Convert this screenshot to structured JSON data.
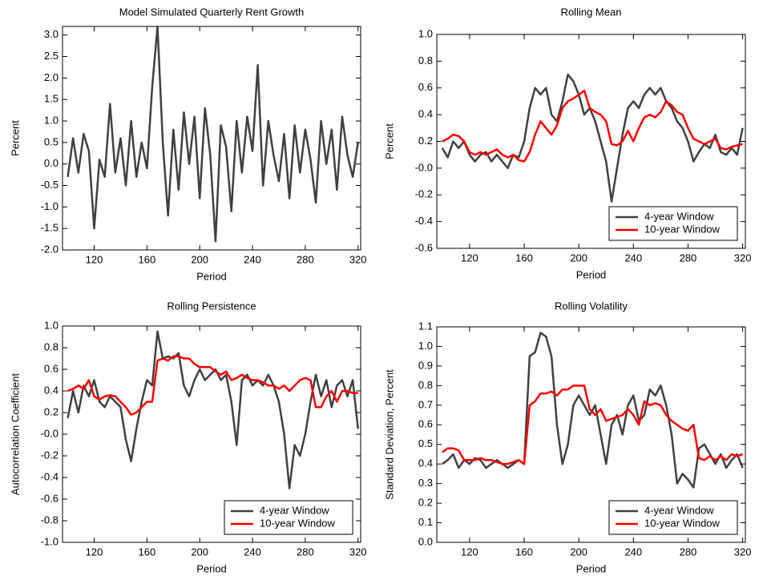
{
  "chart_data": [
    {
      "type": "line",
      "title": "Model Simulated Quarterly Rent Growth",
      "xlabel": "Period",
      "ylabel": "Percent",
      "x": [
        100,
        104,
        108,
        112,
        116,
        120,
        124,
        128,
        132,
        136,
        140,
        144,
        148,
        152,
        156,
        160,
        164,
        168,
        172,
        176,
        180,
        184,
        188,
        192,
        196,
        200,
        204,
        208,
        212,
        216,
        220,
        224,
        228,
        232,
        236,
        240,
        244,
        248,
        252,
        256,
        260,
        264,
        268,
        272,
        276,
        280,
        284,
        288,
        292,
        296,
        300,
        304,
        308,
        312,
        316,
        320
      ],
      "series": [
        {
          "color": "#404040",
          "values": [
            -0.3,
            0.6,
            -0.2,
            0.7,
            0.3,
            -1.5,
            0.1,
            -0.3,
            1.4,
            -0.2,
            0.6,
            -0.5,
            1.0,
            -0.3,
            0.5,
            -0.1,
            1.8,
            3.2,
            0.5,
            -1.2,
            0.8,
            -0.6,
            1.2,
            0.0,
            1.1,
            -0.8,
            1.3,
            0.2,
            -1.8,
            0.9,
            0.4,
            -1.1,
            1.0,
            -0.2,
            1.1,
            0.3,
            2.3,
            -0.5,
            1.0,
            0.2,
            -0.4,
            0.7,
            -0.8,
            0.9,
            -0.2,
            0.8,
            0.1,
            -0.9,
            1.0,
            0.0,
            0.8,
            -0.6,
            1.1,
            0.2,
            -0.3,
            0.5
          ]
        }
      ],
      "xlim": [
        96,
        322
      ],
      "ylim": [
        -2,
        3.2
      ],
      "xticks": [
        120,
        160,
        200,
        240,
        280,
        320
      ],
      "yticks": [
        {
          "value": -2,
          "label": "-2.0"
        },
        -1.5,
        {
          "value": -1,
          "label": "-1.0"
        },
        -0.5,
        {
          "value": 0,
          "label": "0.0"
        },
        0.5,
        {
          "value": 1,
          "label": "1.0"
        },
        1.5,
        {
          "value": 2,
          "label": "2.0"
        },
        2.5,
        {
          "value": 3,
          "label": "3.0"
        }
      ]
    },
    {
      "type": "line",
      "title": "Rolling Mean",
      "xlabel": "Period",
      "ylabel": "Percent",
      "x": [
        100,
        104,
        108,
        112,
        116,
        120,
        124,
        128,
        132,
        136,
        140,
        144,
        148,
        152,
        156,
        160,
        164,
        168,
        172,
        176,
        180,
        184,
        188,
        192,
        196,
        200,
        204,
        208,
        212,
        216,
        220,
        224,
        228,
        232,
        236,
        240,
        244,
        248,
        252,
        256,
        260,
        264,
        268,
        272,
        276,
        280,
        284,
        288,
        292,
        296,
        300,
        304,
        308,
        312,
        316,
        320
      ],
      "series": [
        {
          "name": "4-year Window",
          "color": "#404040",
          "values": [
            0.15,
            0.08,
            0.2,
            0.15,
            0.2,
            0.1,
            0.05,
            0.1,
            0.12,
            0.05,
            0.1,
            0.05,
            0.0,
            0.1,
            0.08,
            0.2,
            0.45,
            0.6,
            0.55,
            0.6,
            0.4,
            0.35,
            0.5,
            0.7,
            0.65,
            0.55,
            0.4,
            0.45,
            0.35,
            0.2,
            0.05,
            -0.25,
            0.0,
            0.25,
            0.45,
            0.5,
            0.45,
            0.55,
            0.6,
            0.55,
            0.6,
            0.5,
            0.45,
            0.35,
            0.3,
            0.2,
            0.05,
            0.12,
            0.18,
            0.15,
            0.25,
            0.12,
            0.1,
            0.15,
            0.1,
            0.3
          ]
        },
        {
          "name": "10-year Window",
          "color": "#ff0000",
          "values": [
            0.2,
            0.22,
            0.25,
            0.24,
            0.2,
            0.12,
            0.1,
            0.12,
            0.1,
            0.12,
            0.14,
            0.1,
            0.08,
            0.1,
            0.06,
            0.05,
            0.12,
            0.25,
            0.35,
            0.3,
            0.25,
            0.32,
            0.45,
            0.5,
            0.52,
            0.55,
            0.58,
            0.45,
            0.42,
            0.4,
            0.35,
            0.18,
            0.17,
            0.2,
            0.28,
            0.2,
            0.3,
            0.38,
            0.4,
            0.38,
            0.42,
            0.5,
            0.47,
            0.42,
            0.4,
            0.3,
            0.22,
            0.2,
            0.18,
            0.2,
            0.22,
            0.15,
            0.14,
            0.16,
            0.17,
            0.18
          ]
        }
      ],
      "xlim": [
        96,
        322
      ],
      "ylim": [
        -0.6,
        1.0
      ],
      "xticks": [
        120,
        160,
        200,
        240,
        280,
        320
      ],
      "yticks": [
        -0.6,
        -0.4,
        -0.2,
        {
          "value": 0,
          "label": "-0.0"
        },
        0.2,
        0.4,
        0.6,
        0.8,
        {
          "value": 1,
          "label": "1.0"
        }
      ],
      "legend": "lower right"
    },
    {
      "type": "line",
      "title": "Rolling Persistence",
      "xlabel": "Period",
      "ylabel": "Autocorrelation Coefficient",
      "x": [
        100,
        104,
        108,
        112,
        116,
        120,
        124,
        128,
        132,
        136,
        140,
        144,
        148,
        152,
        156,
        160,
        164,
        168,
        172,
        176,
        180,
        184,
        188,
        192,
        196,
        200,
        204,
        208,
        212,
        216,
        220,
        224,
        228,
        232,
        236,
        240,
        244,
        248,
        252,
        256,
        260,
        264,
        268,
        272,
        276,
        280,
        284,
        288,
        292,
        296,
        300,
        304,
        308,
        312,
        316,
        320
      ],
      "series": [
        {
          "name": "4-year Window",
          "color": "#404040",
          "values": [
            0.15,
            0.4,
            0.2,
            0.45,
            0.35,
            0.5,
            0.3,
            0.25,
            0.35,
            0.3,
            0.25,
            -0.05,
            -0.25,
            0.05,
            0.3,
            0.5,
            0.45,
            0.95,
            0.7,
            0.72,
            0.7,
            0.75,
            0.45,
            0.35,
            0.5,
            0.6,
            0.5,
            0.55,
            0.6,
            0.5,
            0.55,
            0.3,
            -0.1,
            0.5,
            0.55,
            0.45,
            0.5,
            0.45,
            0.55,
            0.45,
            0.3,
            0.0,
            -0.5,
            -0.1,
            -0.2,
            0.0,
            0.3,
            0.55,
            0.35,
            0.5,
            0.25,
            0.45,
            0.5,
            0.35,
            0.5,
            0.05
          ]
        },
        {
          "name": "10-year Window",
          "color": "#ff0000",
          "values": [
            0.4,
            0.42,
            0.45,
            0.42,
            0.5,
            0.35,
            0.32,
            0.35,
            0.36,
            0.35,
            0.3,
            0.25,
            0.18,
            0.2,
            0.25,
            0.3,
            0.3,
            0.68,
            0.7,
            0.68,
            0.72,
            0.72,
            0.7,
            0.7,
            0.65,
            0.62,
            0.62,
            0.62,
            0.58,
            0.55,
            0.58,
            0.5,
            0.52,
            0.55,
            0.52,
            0.5,
            0.5,
            0.48,
            0.45,
            0.45,
            0.42,
            0.45,
            0.4,
            0.45,
            0.5,
            0.52,
            0.5,
            0.25,
            0.25,
            0.35,
            0.4,
            0.3,
            0.4,
            0.4,
            0.38,
            0.38
          ]
        }
      ],
      "xlim": [
        96,
        322
      ],
      "ylim": [
        -1.0,
        1.0
      ],
      "xticks": [
        120,
        160,
        200,
        240,
        280,
        320
      ],
      "yticks": [
        {
          "value": -1,
          "label": "-1.0"
        },
        -0.8,
        -0.6,
        -0.4,
        -0.2,
        {
          "value": 0,
          "label": "-0.0"
        },
        0.2,
        0.4,
        0.6,
        0.8,
        {
          "value": 1,
          "label": "1.0"
        }
      ],
      "legend": "lower right"
    },
    {
      "type": "line",
      "title": "Rolling Volatility",
      "xlabel": "Period",
      "ylabel": "Standard Deviation, Percent",
      "x": [
        100,
        104,
        108,
        112,
        116,
        120,
        124,
        128,
        132,
        136,
        140,
        144,
        148,
        152,
        156,
        160,
        164,
        168,
        172,
        176,
        180,
        184,
        188,
        192,
        196,
        200,
        204,
        208,
        212,
        216,
        220,
        224,
        228,
        232,
        236,
        240,
        244,
        248,
        252,
        256,
        260,
        264,
        268,
        272,
        276,
        280,
        284,
        288,
        292,
        296,
        300,
        304,
        308,
        312,
        316,
        320
      ],
      "series": [
        {
          "name": "4-year Window",
          "color": "#404040",
          "values": [
            0.4,
            0.42,
            0.45,
            0.38,
            0.42,
            0.4,
            0.43,
            0.42,
            0.38,
            0.4,
            0.42,
            0.4,
            0.38,
            0.4,
            0.42,
            0.4,
            0.95,
            0.97,
            1.07,
            1.05,
            0.95,
            0.6,
            0.4,
            0.5,
            0.7,
            0.75,
            0.7,
            0.65,
            0.7,
            0.55,
            0.4,
            0.6,
            0.65,
            0.55,
            0.7,
            0.75,
            0.62,
            0.65,
            0.78,
            0.75,
            0.8,
            0.7,
            0.55,
            0.3,
            0.35,
            0.32,
            0.28,
            0.48,
            0.5,
            0.45,
            0.4,
            0.45,
            0.38,
            0.42,
            0.45,
            0.38
          ]
        },
        {
          "name": "10-year Window",
          "color": "#ff0000",
          "values": [
            0.46,
            0.48,
            0.48,
            0.47,
            0.42,
            0.42,
            0.42,
            0.43,
            0.42,
            0.42,
            0.41,
            0.4,
            0.4,
            0.41,
            0.42,
            0.4,
            0.7,
            0.72,
            0.76,
            0.76,
            0.77,
            0.75,
            0.78,
            0.78,
            0.8,
            0.8,
            0.8,
            0.68,
            0.65,
            0.68,
            0.62,
            0.63,
            0.64,
            0.65,
            0.68,
            0.65,
            0.6,
            0.72,
            0.7,
            0.71,
            0.7,
            0.65,
            0.62,
            0.6,
            0.58,
            0.57,
            0.6,
            0.43,
            0.42,
            0.44,
            0.42,
            0.44,
            0.42,
            0.45,
            0.44,
            0.45
          ]
        }
      ],
      "xlim": [
        96,
        322
      ],
      "ylim": [
        0.0,
        1.1
      ],
      "xticks": [
        120,
        160,
        200,
        240,
        280,
        320
      ],
      "yticks": [
        {
          "value": 0,
          "label": "0.0"
        },
        0.1,
        0.2,
        0.3,
        0.4,
        0.5,
        0.6,
        0.7,
        0.8,
        0.9,
        {
          "value": 1,
          "label": "1.0"
        },
        1.1
      ],
      "legend": "lower right"
    }
  ]
}
